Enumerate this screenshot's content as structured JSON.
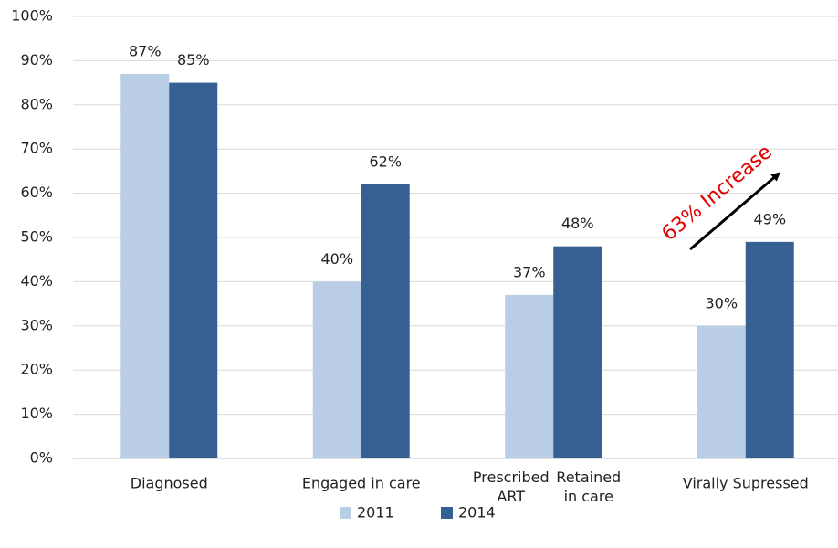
{
  "chart_data": {
    "type": "bar",
    "categories": [
      "Diagnosed",
      "Engaged in care",
      [
        "Prescribed ART",
        "Retained in care"
      ],
      "Virally Supressed"
    ],
    "series": [
      {
        "name": "2011",
        "color": "#b9cde5",
        "values": [
          87,
          40,
          37,
          30
        ],
        "value_labels": [
          "87%",
          "40%",
          "37%",
          "30%"
        ]
      },
      {
        "name": "2014",
        "color": "#376092",
        "values": [
          85,
          62,
          48,
          49
        ],
        "value_labels": [
          "85%",
          "62%",
          "48%",
          "49%"
        ]
      }
    ],
    "ylim": [
      0,
      100
    ],
    "yticks": [
      {
        "value": 0,
        "label": "0%"
      },
      {
        "value": 10,
        "label": "10%"
      },
      {
        "value": 20,
        "label": "20%"
      },
      {
        "value": 30,
        "label": "30%"
      },
      {
        "value": 40,
        "label": "40%"
      },
      {
        "value": 50,
        "label": "50%"
      },
      {
        "value": 60,
        "label": "60%"
      },
      {
        "value": 70,
        "label": "70%"
      },
      {
        "value": 80,
        "label": "80%"
      },
      {
        "value": 90,
        "label": "90%"
      },
      {
        "value": 100,
        "label": "100%"
      }
    ],
    "grid": true,
    "legend": "bottom",
    "annotation": "63% Increase"
  }
}
